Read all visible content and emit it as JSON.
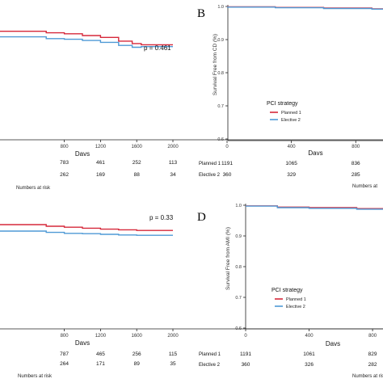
{
  "chart_data": [
    {
      "type": "line",
      "panel": "",
      "xlabel": "Davs",
      "ylabel": "",
      "xlim": [
        0,
        2000
      ],
      "ylim": [
        0.6,
        1.0
      ],
      "x_ticks": [
        800,
        1200,
        1600,
        2000
      ],
      "y_ticks": [],
      "annotation": "p = 0.461",
      "series": [
        {
          "name": "",
          "color": "#d6283a",
          "x": [
            0,
            600,
            800,
            1000,
            1200,
            1400,
            1550,
            1650,
            2000
          ],
          "y": [
            0.956,
            0.951,
            0.948,
            0.942,
            0.936,
            0.924,
            0.916,
            0.912,
            0.912
          ]
        },
        {
          "name": "",
          "color": "#4f9ad6",
          "x": [
            0,
            600,
            800,
            1000,
            1200,
            1400,
            1550,
            1650,
            2000
          ],
          "y": [
            0.938,
            0.932,
            0.93,
            0.926,
            0.92,
            0.91,
            0.904,
            0.906,
            0.906
          ]
        }
      ],
      "risk_table": {
        "label_position": "left",
        "title": "Numbers at risk",
        "rows": [
          {
            "label": "",
            "values": [
              "783",
              "461",
              "252",
              "113"
            ]
          },
          {
            "label": "",
            "values": [
              "262",
              "169",
              "88",
              "34"
            ]
          }
        ]
      }
    },
    {
      "type": "line",
      "panel": "B",
      "xlabel": "Davs",
      "ylabel": "Survival Free from CD (%)",
      "xlim": [
        0,
        1100
      ],
      "ylim": [
        0.6,
        1.0
      ],
      "x_ticks": [
        0,
        400,
        800
      ],
      "y_ticks": [
        "0.6",
        "0.7",
        "0.8",
        "0.9",
        "1.0"
      ],
      "legend": {
        "title": "PCI strategy",
        "entries": [
          "Planned 1",
          "Elective 2"
        ],
        "placement": "center-left"
      },
      "series": [
        {
          "name": "Planned 1",
          "color": "#d6283a",
          "x": [
            0,
            300,
            600,
            900,
            1100
          ],
          "y": [
            0.999,
            0.997,
            0.995,
            0.993,
            0.992
          ]
        },
        {
          "name": "Elective 2",
          "color": "#4f9ad6",
          "x": [
            0,
            300,
            600,
            900,
            1100
          ],
          "y": [
            0.998,
            0.996,
            0.994,
            0.992,
            0.991
          ]
        }
      ],
      "risk_table": {
        "title": "Numbers at",
        "rows": [
          {
            "label": "Planned 1",
            "values": [
              "1191",
              "1065",
              "836"
            ]
          },
          {
            "label": "Elective 2",
            "values": [
              "360",
              "329",
              "285"
            ]
          }
        ]
      }
    },
    {
      "type": "line",
      "panel": "",
      "xlabel": "Davs",
      "ylabel": "",
      "xlim": [
        0,
        2000
      ],
      "ylim": [
        0.6,
        1.0
      ],
      "x_ticks": [
        800,
        1200,
        1600,
        2000
      ],
      "y_ticks": [],
      "annotation": "p = 0.33",
      "series": [
        {
          "name": "",
          "color": "#d6283a",
          "x": [
            0,
            600,
            800,
            1000,
            1200,
            1400,
            1600,
            2000
          ],
          "y": [
            0.95,
            0.945,
            0.942,
            0.939,
            0.936,
            0.934,
            0.932,
            0.932
          ]
        },
        {
          "name": "",
          "color": "#4f9ad6",
          "x": [
            0,
            600,
            800,
            1000,
            1200,
            1400,
            1600,
            2000
          ],
          "y": [
            0.93,
            0.926,
            0.923,
            0.922,
            0.92,
            0.918,
            0.917,
            0.917
          ]
        }
      ],
      "risk_table": {
        "label_position": "left",
        "title": "Numbers at risk",
        "rows": [
          {
            "label": "",
            "values": [
              "787",
              "465",
              "256",
              "115"
            ]
          },
          {
            "label": "",
            "values": [
              "264",
              "171",
              "89",
              "35"
            ]
          }
        ]
      }
    },
    {
      "type": "line",
      "panel": "D",
      "xlabel": "Davs",
      "ylabel": "Survival Free from AMI (%)",
      "xlim": [
        0,
        1100
      ],
      "ylim": [
        0.6,
        1.0
      ],
      "x_ticks": [
        0,
        400,
        800
      ],
      "y_ticks": [
        "0.6",
        "0.7",
        "0.8",
        "0.9",
        "1.0"
      ],
      "legend": {
        "title": "PCI strategy",
        "entries": [
          "Planned 1",
          "Elective 2"
        ],
        "placement": "center-left"
      },
      "series": [
        {
          "name": "Planned 1",
          "color": "#d6283a",
          "x": [
            0,
            200,
            400,
            700,
            1000,
            1100
          ],
          "y": [
            0.998,
            0.994,
            0.992,
            0.989,
            0.986,
            0.985
          ]
        },
        {
          "name": "Elective 2",
          "color": "#4f9ad6",
          "x": [
            0,
            200,
            400,
            700,
            1000,
            1100
          ],
          "y": [
            0.997,
            0.992,
            0.99,
            0.987,
            0.985,
            0.984
          ]
        }
      ],
      "risk_table": {
        "title": "Numbers at ris",
        "rows": [
          {
            "label": "Planned 1",
            "values": [
              "1191",
              "1061",
              "829"
            ]
          },
          {
            "label": "Elective 2",
            "values": [
              "360",
              "326",
              "282"
            ]
          }
        ]
      }
    }
  ]
}
